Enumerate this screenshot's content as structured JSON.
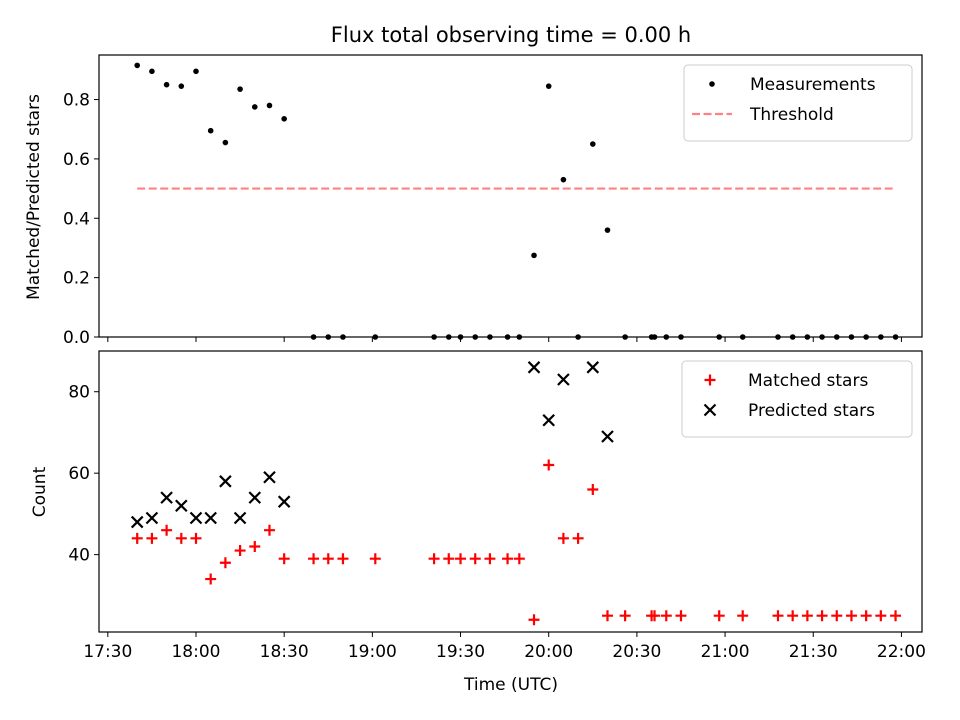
{
  "chart_data": [
    {
      "type": "scatter",
      "title": "Flux total observing time = 0.00 h",
      "xlabel": "",
      "ylabel": "Matched/Predicted stars",
      "xlim": [
        "17:27",
        "22:07"
      ],
      "ylim": [
        0,
        0.95
      ],
      "yticks": [
        0.0,
        0.2,
        0.4,
        0.6,
        0.8
      ],
      "ytick_labels": [
        "0.0",
        "0.2",
        "0.4",
        "0.6",
        "0.8"
      ],
      "legend": "top-right",
      "series": [
        {
          "name": "Measurements",
          "marker": "dot",
          "color": "#000000",
          "points": [
            [
              "17:40",
              0.915
            ],
            [
              "17:45",
              0.895
            ],
            [
              "17:50",
              0.85
            ],
            [
              "17:55",
              0.845
            ],
            [
              "18:00",
              0.895
            ],
            [
              "18:05",
              0.695
            ],
            [
              "18:10",
              0.655
            ],
            [
              "18:15",
              0.835
            ],
            [
              "18:20",
              0.775
            ],
            [
              "18:25",
              0.78
            ],
            [
              "18:30",
              0.735
            ],
            [
              "18:40",
              0.0
            ],
            [
              "18:45",
              0.0
            ],
            [
              "18:50",
              0.0
            ],
            [
              "19:01",
              0.0
            ],
            [
              "19:21",
              0.0
            ],
            [
              "19:26",
              0.0
            ],
            [
              "19:30",
              0.0
            ],
            [
              "19:35",
              0.0
            ],
            [
              "19:40",
              0.0
            ],
            [
              "19:46",
              0.0
            ],
            [
              "19:50",
              0.0
            ],
            [
              "19:55",
              0.275
            ],
            [
              "20:00",
              0.845
            ],
            [
              "20:05",
              0.53
            ],
            [
              "20:10",
              0.0
            ],
            [
              "20:15",
              0.65
            ],
            [
              "20:20",
              0.36
            ],
            [
              "20:26",
              0.0
            ],
            [
              "20:35",
              0.0
            ],
            [
              "20:36",
              0.0
            ],
            [
              "20:40",
              0.0
            ],
            [
              "20:45",
              0.0
            ],
            [
              "20:58",
              0.0
            ],
            [
              "21:06",
              0.0
            ],
            [
              "21:18",
              0.0
            ],
            [
              "21:23",
              0.0
            ],
            [
              "21:28",
              0.0
            ],
            [
              "21:33",
              0.0
            ],
            [
              "21:38",
              0.0
            ],
            [
              "21:43",
              0.0
            ],
            [
              "21:48",
              0.0
            ],
            [
              "21:53",
              0.0
            ],
            [
              "21:58",
              0.0
            ]
          ]
        },
        {
          "name": "Threshold",
          "style": "dashed",
          "color": "#ff8080",
          "points": [
            [
              "17:40",
              0.5
            ],
            [
              "21:57",
              0.5
            ]
          ]
        }
      ]
    },
    {
      "type": "scatter",
      "title": "",
      "xlabel": "Time (UTC)",
      "ylabel": "Count",
      "xlim": [
        "17:27",
        "22:07"
      ],
      "ylim": [
        21,
        90
      ],
      "yticks": [
        40,
        60,
        80
      ],
      "ytick_labels": [
        "40",
        "60",
        "80"
      ],
      "xtick_labels": [
        "17:30",
        "18:00",
        "18:30",
        "19:00",
        "19:30",
        "20:00",
        "20:30",
        "21:00",
        "21:30",
        "22:00"
      ],
      "legend": "top-right",
      "series": [
        {
          "name": "Matched stars",
          "marker": "plus",
          "color": "#ff0000",
          "points": [
            [
              "17:40",
              44
            ],
            [
              "17:45",
              44
            ],
            [
              "17:50",
              46
            ],
            [
              "17:55",
              44
            ],
            [
              "18:00",
              44
            ],
            [
              "18:05",
              34
            ],
            [
              "18:10",
              38
            ],
            [
              "18:15",
              41
            ],
            [
              "18:20",
              42
            ],
            [
              "18:25",
              46
            ],
            [
              "18:30",
              39
            ],
            [
              "18:40",
              39
            ],
            [
              "18:45",
              39
            ],
            [
              "18:50",
              39
            ],
            [
              "19:01",
              39
            ],
            [
              "19:21",
              39
            ],
            [
              "19:26",
              39
            ],
            [
              "19:30",
              39
            ],
            [
              "19:35",
              39
            ],
            [
              "19:40",
              39
            ],
            [
              "19:46",
              39
            ],
            [
              "19:50",
              39
            ],
            [
              "19:55",
              24
            ],
            [
              "20:00",
              62
            ],
            [
              "20:05",
              44
            ],
            [
              "20:10",
              44
            ],
            [
              "20:15",
              56
            ],
            [
              "20:20",
              25
            ],
            [
              "20:26",
              25
            ],
            [
              "20:35",
              25
            ],
            [
              "20:36",
              25
            ],
            [
              "20:40",
              25
            ],
            [
              "20:45",
              25
            ],
            [
              "20:58",
              25
            ],
            [
              "21:06",
              25
            ],
            [
              "21:18",
              25
            ],
            [
              "21:23",
              25
            ],
            [
              "21:28",
              25
            ],
            [
              "21:33",
              25
            ],
            [
              "21:38",
              25
            ],
            [
              "21:43",
              25
            ],
            [
              "21:48",
              25
            ],
            [
              "21:53",
              25
            ],
            [
              "21:58",
              25
            ]
          ]
        },
        {
          "name": "Predicted stars",
          "marker": "x",
          "color": "#000000",
          "points": [
            [
              "17:40",
              48
            ],
            [
              "17:45",
              49
            ],
            [
              "17:50",
              54
            ],
            [
              "17:55",
              52
            ],
            [
              "18:00",
              49
            ],
            [
              "18:05",
              49
            ],
            [
              "18:10",
              58
            ],
            [
              "18:15",
              49
            ],
            [
              "18:20",
              54
            ],
            [
              "18:25",
              59
            ],
            [
              "18:30",
              53
            ],
            [
              "19:55",
              86
            ],
            [
              "20:00",
              73
            ],
            [
              "20:05",
              83
            ],
            [
              "20:15",
              86
            ],
            [
              "20:20",
              69
            ]
          ]
        }
      ]
    }
  ]
}
